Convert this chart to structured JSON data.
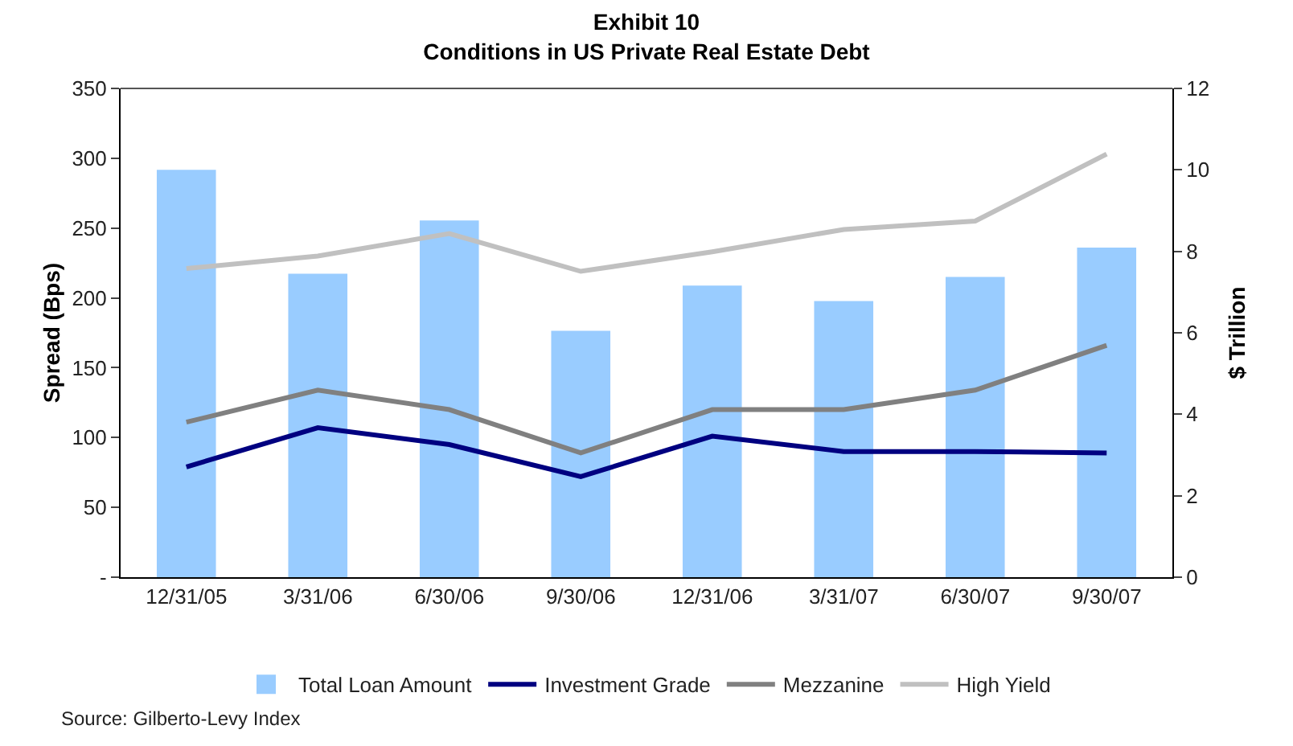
{
  "chart_data": {
    "type": "bar",
    "title": "Exhibit 10\nConditions in US Private Real Estate Debt",
    "categories": [
      "12/31/05",
      "3/31/06",
      "6/30/06",
      "9/30/06",
      "12/31/06",
      "3/31/07",
      "6/30/07",
      "9/30/07"
    ],
    "series": [
      {
        "name": "Total Loan Amount",
        "axis": "y2",
        "color": "#99ccff",
        "values": [
          10.0,
          7.45,
          8.76,
          6.05,
          7.16,
          6.78,
          7.37,
          8.09
        ]
      },
      {
        "name": "Investment Grade",
        "type": "line",
        "color": "#000080",
        "values": [
          79,
          107,
          95,
          72,
          101,
          90,
          90,
          89
        ]
      },
      {
        "name": "Mezzanine",
        "type": "line",
        "color": "#808080",
        "values": [
          111,
          134,
          120,
          89,
          120,
          120,
          134,
          166
        ]
      },
      {
        "name": "High Yield",
        "type": "line",
        "color": "#c0c0c0",
        "values": [
          221,
          230,
          246,
          219,
          233,
          249,
          255,
          303
        ]
      }
    ],
    "ylabel": "Spread (Bps)",
    "y2label": "$ Trillion",
    "ylim": [
      0,
      350
    ],
    "yticks": [
      {
        "value": 0,
        "label": "-"
      },
      50,
      100,
      150,
      200,
      250,
      300,
      350
    ],
    "y2lim": [
      0,
      12
    ],
    "y2ticks": [
      0,
      2,
      4,
      6,
      8,
      10,
      12
    ],
    "grid": false,
    "legend": "bottom",
    "marker": "none",
    "line_style": "solid",
    "annotations": [
      "Source: Gilberto-Levy Index"
    ]
  }
}
